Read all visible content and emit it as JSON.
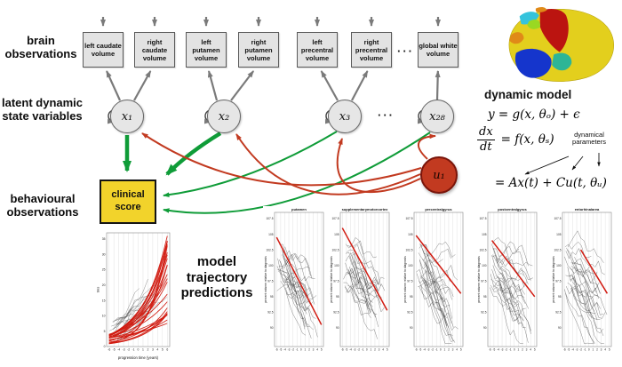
{
  "labels": {
    "brain": "brain observations",
    "latent": "latent dynamic state variables",
    "behavioural": "behavioural observations",
    "predictions": "model trajectory predictions"
  },
  "diagram": {
    "observation_boxes": [
      "left caudate volume",
      "right caudate volume",
      "left putamen volume",
      "right putamen volume",
      "left precentral volume",
      "right precentral volume",
      "global white volume"
    ],
    "box_ellipsis": "···",
    "latent_nodes": [
      "x₁",
      "x₂",
      "x₃",
      "x₂₈"
    ],
    "latent_ellipsis": "···",
    "input_node": "u₁",
    "clinical_label": "clinical score"
  },
  "dynamic_model": {
    "title": "dynamic model",
    "eq_observation": "y = g(x, θₒ) + ϵ",
    "frac_num": "dx",
    "frac_den": "dt",
    "eq_state": "= f(x, θₛ)",
    "annotation": "dynamical parameters",
    "eq_linear": "= Ax(t) + Cu(t, θᵤ)"
  },
  "colors": {
    "green_arrow": "#0f9c38",
    "red_arrow": "#c23a20",
    "gray_arrow": "#7a7a7a",
    "box_fill": "#e3e3e3",
    "clinical_fill": "#f2d32b",
    "input_fill": "#c23a20",
    "fit_line": "#d11a10",
    "data_line": "#333333"
  },
  "chart_data": [
    {
      "type": "line",
      "name": "clinical-score-trajectories",
      "title": "",
      "xlabel": "progression time (years)",
      "ylabel": "tms",
      "x_ticks": [
        -6,
        -5,
        -4,
        -3,
        -2,
        -1,
        0,
        1,
        2,
        3,
        4,
        5,
        6
      ],
      "y_ticks": [
        0,
        5,
        10,
        15,
        20,
        25,
        30,
        35
      ],
      "xlim": [
        -6.5,
        6.5
      ],
      "ylim": [
        0,
        37
      ],
      "trend": "increasing exponential fan of red model fits over grey patient data",
      "n_data_lines": 22,
      "n_fit_lines": 26,
      "grid": "vertical",
      "legend": "none"
    },
    {
      "type": "line",
      "name": "region-volume-panels",
      "ylabel": "percent volume relative to diagnosis",
      "x_ticks": [
        -6,
        -5,
        -4,
        -3,
        -2,
        -1,
        0,
        1,
        2,
        3,
        4,
        5
      ],
      "y_ticks": [
        90,
        92.5,
        95,
        97.5,
        100,
        102.5,
        105,
        107.5
      ],
      "xlim": [
        -6.5,
        5.5
      ],
      "ylim": [
        87,
        108.5
      ],
      "trend": "decreasing grey data with thick red linear fit",
      "n_data_lines": 26,
      "grid": "vertical",
      "legend": "none",
      "panels": [
        {
          "title": "putamen",
          "fit": {
            "x0": -6,
            "y0": 104.5,
            "x1": 5,
            "y1": 90.5
          }
        },
        {
          "title": "supplementarymotorcortex",
          "fit": {
            "x0": -6,
            "y0": 106.0,
            "x1": 5,
            "y1": 92.8
          }
        },
        {
          "title": "precentralgyrus",
          "fit": {
            "x0": -6,
            "y0": 104.8,
            "x1": 5,
            "y1": 95.5
          }
        },
        {
          "title": "postcentralgyrus",
          "fit": {
            "x0": -5.5,
            "y0": 104.0,
            "x1": 5,
            "y1": 95.0
          }
        },
        {
          "title": "entorhinalarea",
          "fit": {
            "x0": -2,
            "y0": 102.5,
            "x1": 4.5,
            "y1": 95.5
          }
        }
      ]
    }
  ]
}
